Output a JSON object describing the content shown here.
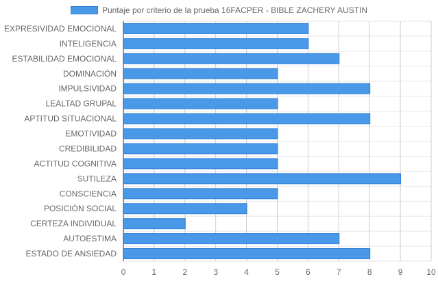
{
  "chart_data": {
    "type": "bar",
    "orientation": "horizontal",
    "categories": [
      "EXPRESIVIDAD EMOCIONAL",
      "INTELIGENCIA",
      "ESTABILIDAD EMOCIONAL",
      "DOMINACIÓN",
      "IMPULSIVIDAD",
      "LEALTAD GRUPAL",
      "APTITUD SITUACIONAL",
      "EMOTIVIDAD",
      "CREDIBILIDAD",
      "ACTITUD COGNITIVA",
      "SUTILEZA",
      "CONSCIENCIA",
      "POSICIÓN SOCIAL",
      "CERTEZA INDIVIDUAL",
      "AUTOESTIMA",
      "ESTADO DE ANSIEDAD"
    ],
    "series": [
      {
        "name": "Puntaje por criterio de la prueba 16FACPER - BIBLE ZACHERY AUSTIN",
        "values": [
          6,
          6,
          7,
          5,
          8,
          5,
          8,
          5,
          5,
          5,
          9,
          5,
          4,
          2,
          7,
          8
        ],
        "color": "#4a98e8",
        "border_color": "#2f7fd8"
      }
    ],
    "xlim": [
      0,
      10
    ],
    "x_ticks": [
      "0",
      "1",
      "2",
      "3",
      "4",
      "5",
      "6",
      "7",
      "8",
      "9",
      "10"
    ],
    "grid": true,
    "legend_position": "top"
  }
}
